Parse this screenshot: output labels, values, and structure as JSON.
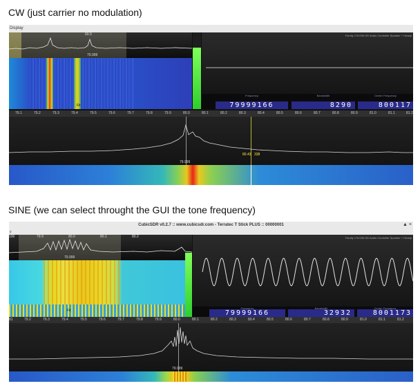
{
  "captions": {
    "top": "CW (just carrier no modulation)",
    "bottom": "SINE (we can select throught the GUI the tone frequency)"
  },
  "cw": {
    "menu_label": "Display",
    "mini_tick": "60.0",
    "mini_center_label": "79.999",
    "waterfall_marker": "Fit",
    "scope_title": "Family 17h/19h HD Audio Controller Speaker + Headp",
    "freq_label": "Frequency",
    "freq_value": "79999166",
    "bw_label": "Bandwidth",
    "bw_value": "8290",
    "center_label": "Center Frequency",
    "center_value": "800117",
    "scale_ticks": [
      "79.1",
      "79.2",
      "79.3",
      "79.4",
      "79.5",
      "79.6",
      "79.7",
      "79.8",
      "79.9",
      "80.0",
      "80.1",
      "80.2",
      "80.3",
      "80.4",
      "80.5",
      "80.6",
      "80.7",
      "80.8",
      "80.9",
      "81.0",
      "81.1",
      "81.2"
    ],
    "main_center_label": "79.999",
    "cursor_label": "80.43",
    "cursor_label2": "338"
  },
  "sine": {
    "window_title": "CubicSDR v0.2.7 :: www.cubicsdr.com - Terratec T Stick PLUS :: 00000001",
    "window_control": "▲ ×",
    "menu_label": "y",
    "mini_ticks": [
      "100",
      "79.9",
      "80.0",
      "80.1",
      "80.2"
    ],
    "mini_center_label": "79.999",
    "waterfall_marker": "Fit",
    "scope_title": "Family 17h/19h HD Audio Controller Speaker + Headp",
    "freq_label": "Frequency",
    "freq_value": "79999166",
    "bw_label": "Bandwidth",
    "bw_value": "32932",
    "center_label": "Center Frequency",
    "center_value": "8001173",
    "scale_ticks": [
      "81",
      "79.2",
      "79.3",
      "79.4",
      "79.5",
      "79.6",
      "79.7",
      "79.8",
      "79.9",
      "80.0",
      "80.1",
      "80.2",
      "80.3",
      "80.4",
      "80.5",
      "80.6",
      "80.7",
      "80.8",
      "80.9",
      "81.0",
      "81.1",
      "81.2"
    ],
    "main_center_label": "79.999"
  },
  "colors": {
    "meter_green": "#3fd83f",
    "digits_blue": "#2a2a8a",
    "waterfall_blue": "#2846c8",
    "carrier_red": "#e81818",
    "carrier_yellow": "#f0e020"
  }
}
